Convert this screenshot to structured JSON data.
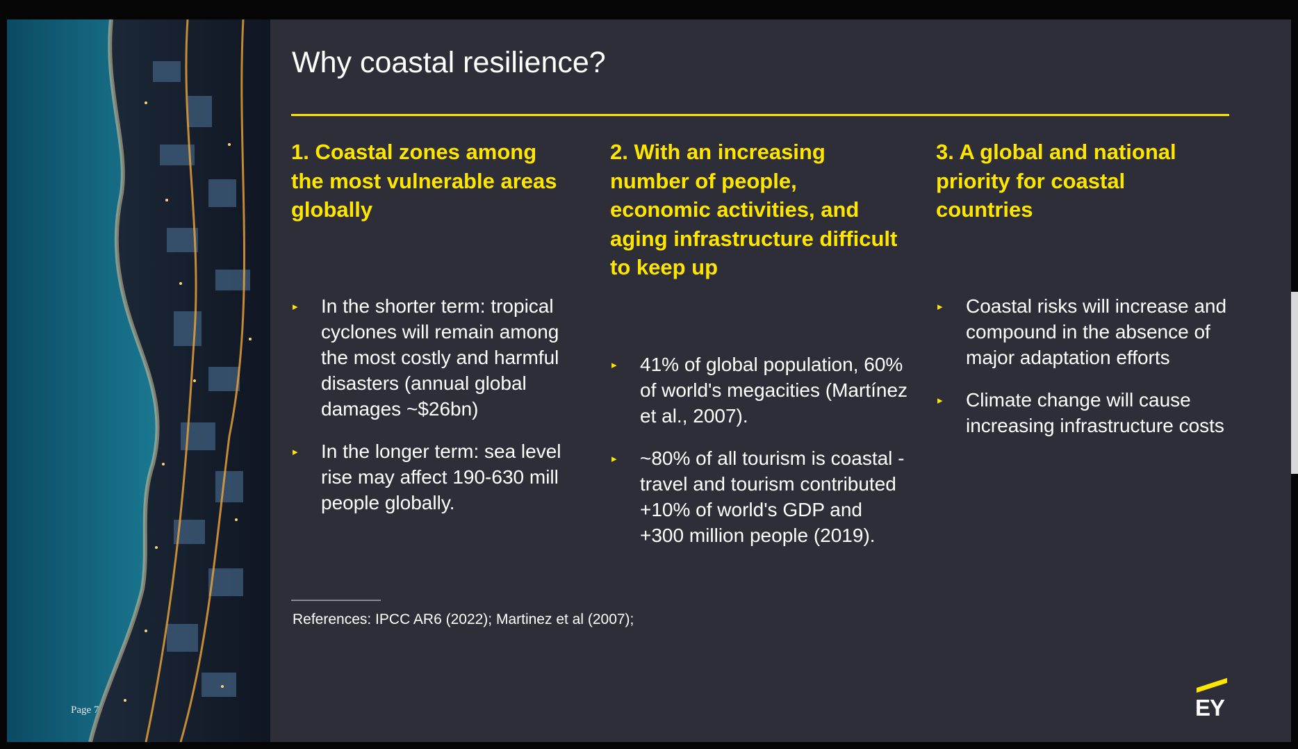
{
  "slide": {
    "title": "Why coastal resilience?",
    "page_label": "Page 7",
    "columns": [
      {
        "heading": "1. Coastal zones among the most vulnerable areas globally",
        "bullets": [
          "In the shorter term: tropical cyclones will remain among the most costly and harmful disasters (annual global damages ~$26bn)",
          "In the longer term: sea level rise may affect 190-630 mill people globally."
        ]
      },
      {
        "heading": "2. With an increasing number of people, economic activities, and aging infrastructure difficult to keep up",
        "bullets": [
          "41% of global population, 60% of world's megacities (Martínez et al., 2007).",
          "~80% of all tourism is coastal - travel and tourism contributed +10% of world's GDP and +300 million people (2019)."
        ]
      },
      {
        "heading": "3. A global and national priority for coastal countries",
        "bullets": [
          "Coastal risks will increase and compound in the absence of major adaptation efforts",
          "Climate change will cause increasing infrastructure costs"
        ]
      }
    ],
    "references": "References: IPCC AR6 (2022); Martinez et al (2007);",
    "logo_text": "EY",
    "bullet_glyph": "▸"
  },
  "colors": {
    "background": "#2e2e38",
    "accent": "#ffe600",
    "text": "#ffffff"
  }
}
